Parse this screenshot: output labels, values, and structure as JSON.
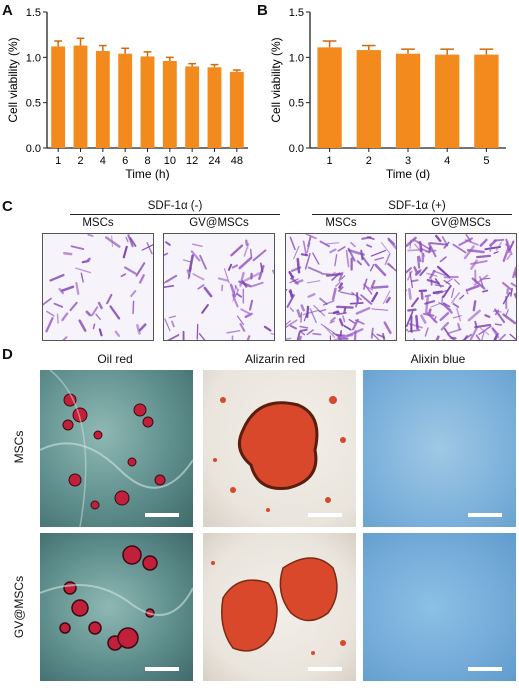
{
  "panels": {
    "a": "A",
    "b": "B",
    "c": "C",
    "d": "D"
  },
  "chart_data": [
    {
      "type": "bar",
      "panel": "A",
      "categories": [
        "1",
        "2",
        "4",
        "6",
        "8",
        "10",
        "12",
        "24",
        "48"
      ],
      "values": [
        1.12,
        1.13,
        1.07,
        1.04,
        1.01,
        0.96,
        0.9,
        0.89,
        0.84
      ],
      "errors": [
        0.06,
        0.08,
        0.06,
        0.06,
        0.05,
        0.04,
        0.03,
        0.03,
        0.02
      ],
      "xlabel": "Time (h)",
      "ylabel": "Cell viability (%)",
      "ylim": [
        0,
        1.5
      ],
      "yticks": [
        "0.0",
        "0.5",
        "1.0",
        "1.5"
      ],
      "color": "#f28a1e"
    },
    {
      "type": "bar",
      "panel": "B",
      "categories": [
        "1",
        "2",
        "3",
        "4",
        "5"
      ],
      "values": [
        1.11,
        1.08,
        1.04,
        1.03,
        1.03
      ],
      "errors": [
        0.07,
        0.05,
        0.05,
        0.06,
        0.06
      ],
      "xlabel": "Time (d)",
      "ylabel": "Cell viability (%)",
      "ylim": [
        0,
        1.5
      ],
      "yticks": [
        "0.0",
        "0.5",
        "1.0",
        "1.5"
      ],
      "color": "#f28a1e"
    }
  ],
  "panel_c": {
    "groups": [
      "SDF-1α (-)",
      "SDF-1α (+)"
    ],
    "conditions": [
      "MSCs",
      "GV@MSCs",
      "MSCs",
      "GV@MSCs"
    ]
  },
  "panel_d": {
    "columns": [
      "Oil red",
      "Alizarin red",
      "Alixin blue"
    ],
    "rows": [
      "MSCs",
      "GV@MSCs"
    ]
  }
}
